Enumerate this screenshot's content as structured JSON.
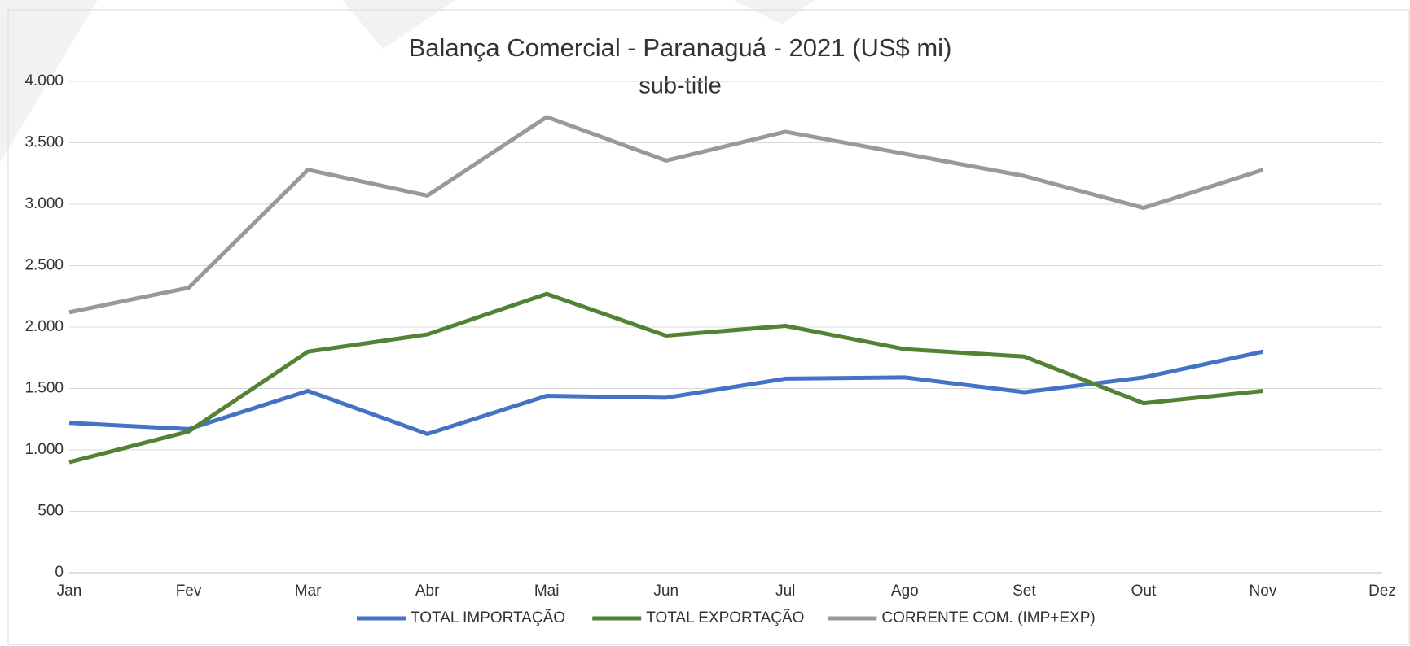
{
  "chart_data": {
    "type": "line",
    "title": "Balança Comercial - Paranaguá - 2021 (US$ mi)",
    "subtitle": "sub-title",
    "categories": [
      "Jan",
      "Fev",
      "Mar",
      "Abr",
      "Mai",
      "Jun",
      "Jul",
      "Ago",
      "Set",
      "Out",
      "Nov",
      "Dez"
    ],
    "series": [
      {
        "name": "TOTAL IMPORTAÇÃO",
        "color": "#4472c4",
        "values": [
          1220,
          1170,
          1480,
          1130,
          1440,
          1425,
          1580,
          1590,
          1470,
          1590,
          1800,
          null
        ]
      },
      {
        "name": "TOTAL EXPORTAÇÃO",
        "color": "#548235",
        "values": [
          900,
          1150,
          1800,
          1940,
          2270,
          1930,
          2010,
          1820,
          1760,
          1380,
          1480,
          null
        ]
      },
      {
        "name": "CORRENTE COM. (IMP+EXP)",
        "color": "#999999",
        "values": [
          2120,
          2320,
          3280,
          3070,
          3710,
          3355,
          3590,
          3410,
          3230,
          2970,
          3280,
          null
        ]
      }
    ],
    "ylim": [
      0,
      4000
    ],
    "yticks": [
      0,
      500,
      {
        "value": 1000,
        "label": "1.000"
      },
      {
        "value": 1500,
        "label": "1.500"
      },
      {
        "value": 2000,
        "label": "2.000"
      },
      {
        "value": 2500,
        "label": "2.500"
      },
      {
        "value": 3000,
        "label": "3.000"
      },
      {
        "value": 3500,
        "label": "3.500"
      },
      {
        "value": 4000,
        "label": "4.000"
      }
    ],
    "grid": true,
    "legend": "bottom"
  }
}
